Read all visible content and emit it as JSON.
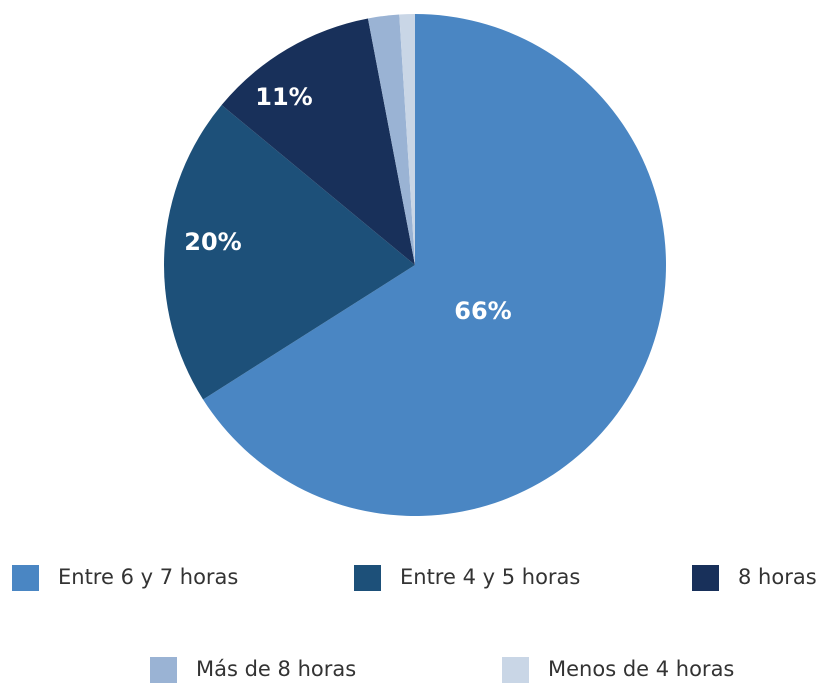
{
  "chart_data": {
    "type": "pie",
    "categories": [
      "Entre 6 y 7 horas",
      "Entre 4 y 5 horas",
      "8 horas",
      "Más de 8 horas",
      "Menos de 4 horas"
    ],
    "values": [
      66,
      20,
      11,
      2,
      1
    ],
    "value_labels": [
      "66%",
      "20%",
      "11%",
      null,
      null
    ],
    "colors": [
      "#4a86c3",
      "#1d5079",
      "#18305a",
      "#9ab3d4",
      "#c9d6e6"
    ]
  }
}
